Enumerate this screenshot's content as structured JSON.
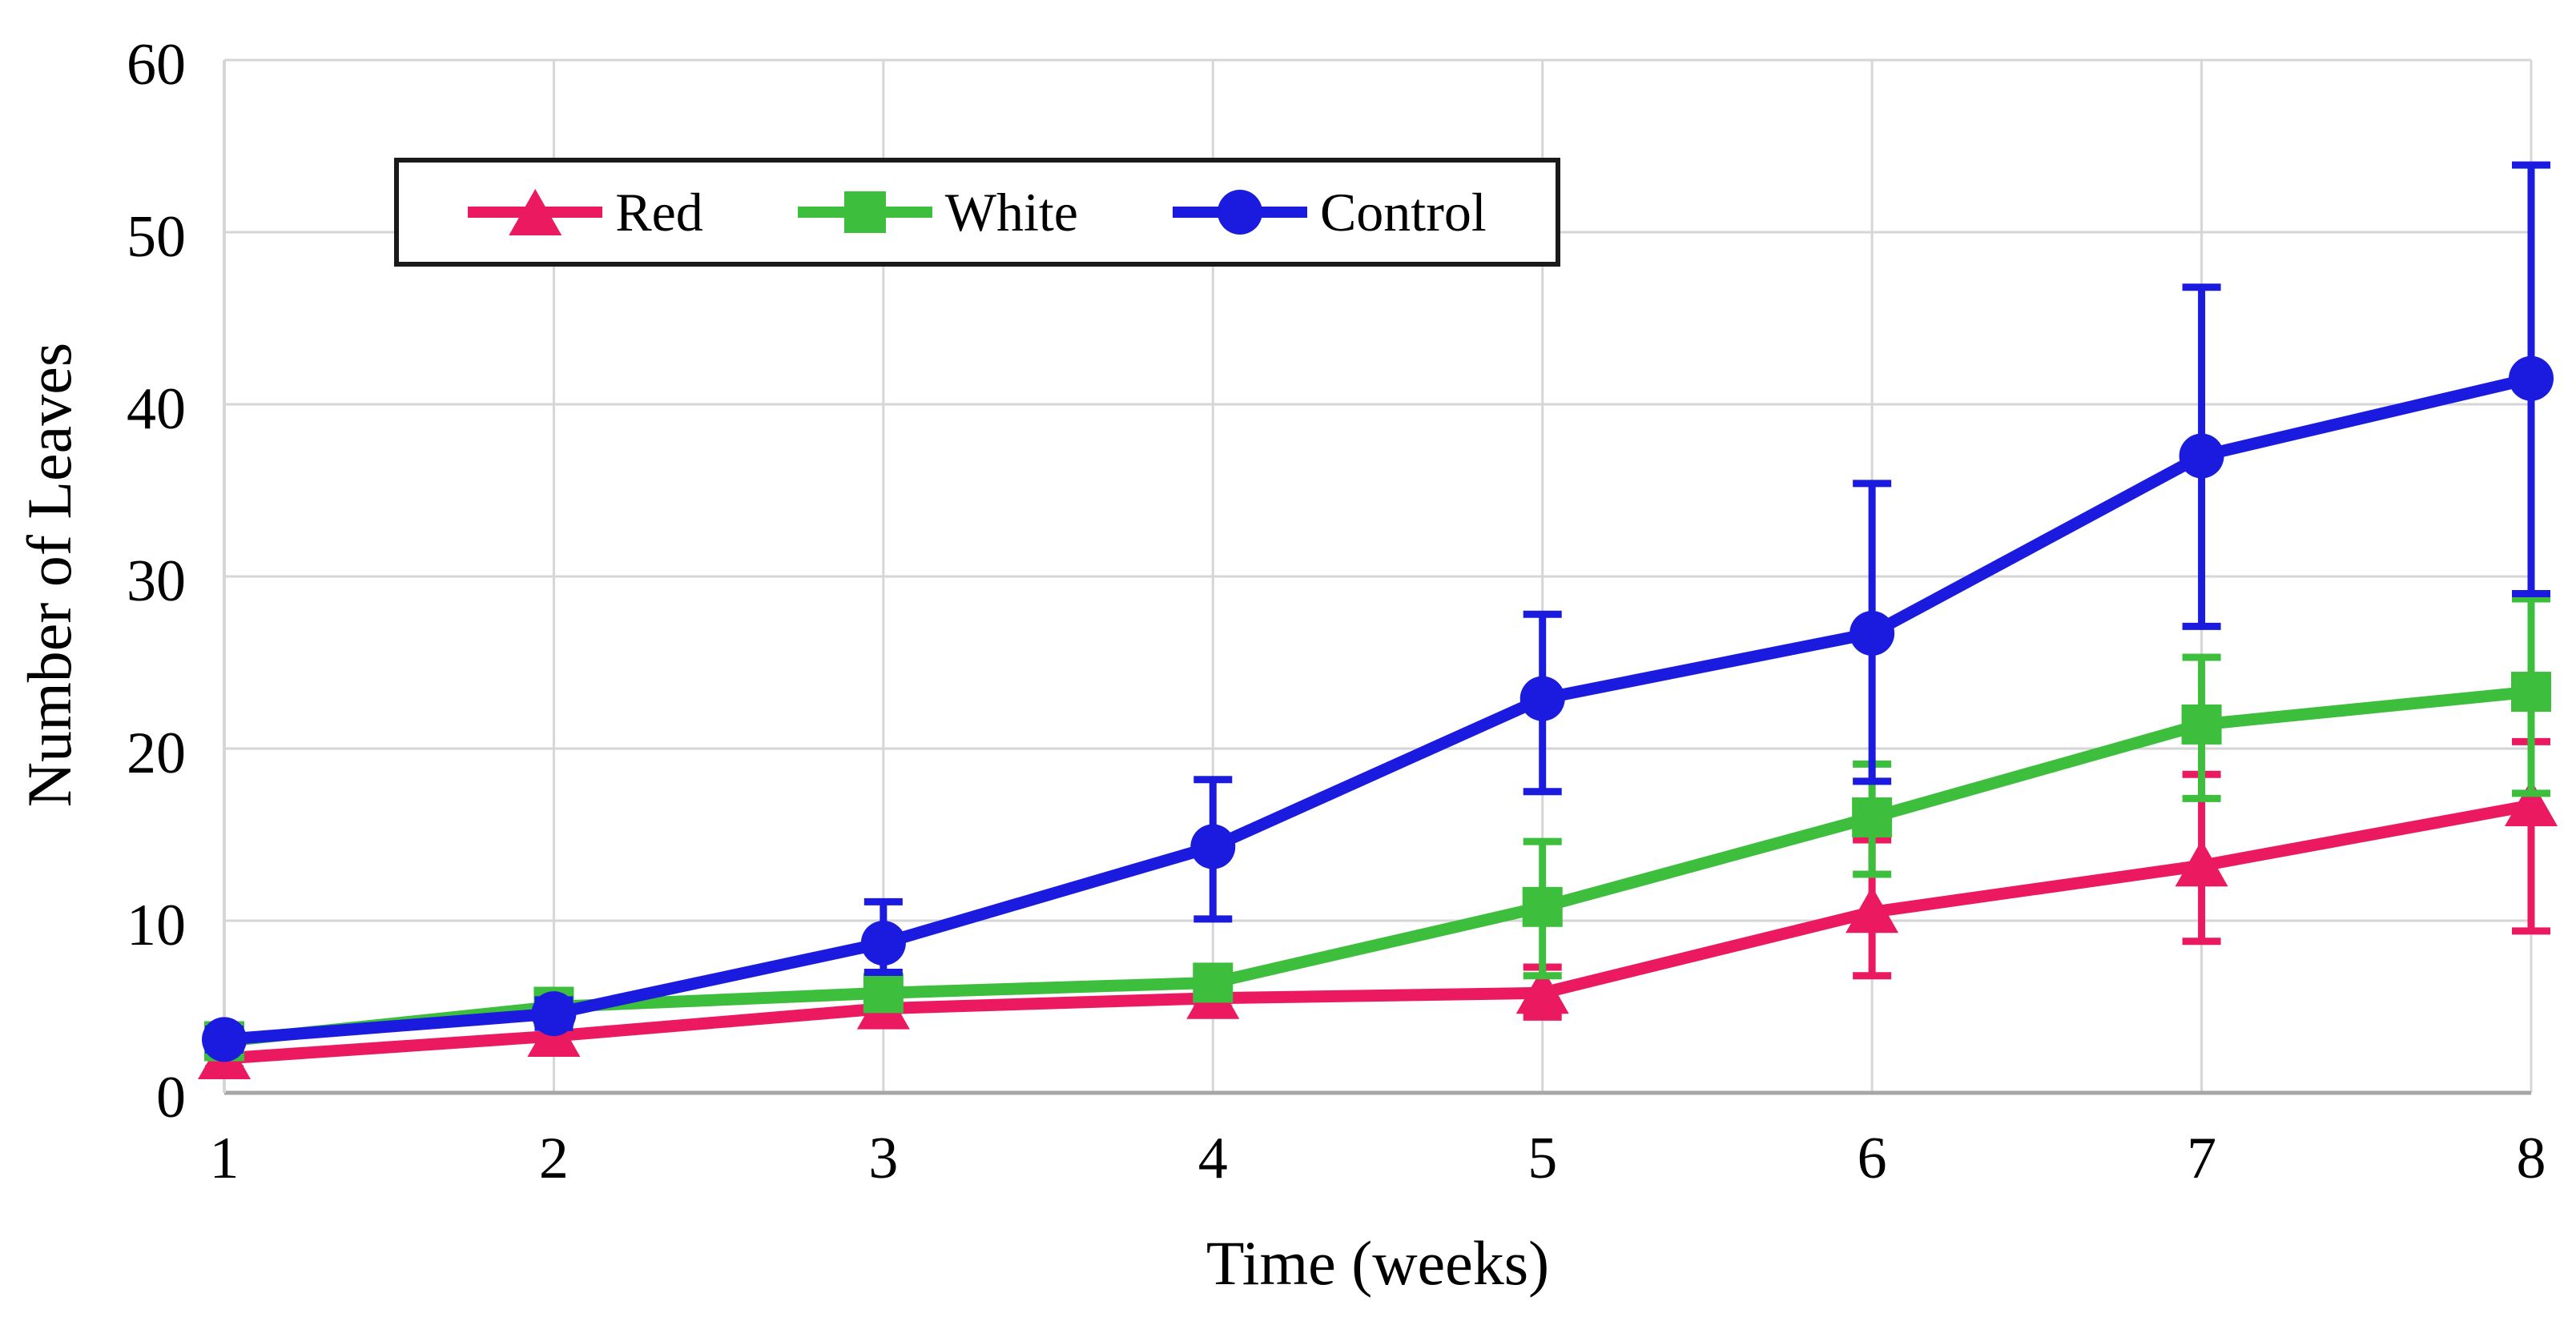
{
  "figure": {
    "background": "#ffffff",
    "text_color": "#000000"
  },
  "chart_data": {
    "type": "line",
    "title": "",
    "xlabel": "Time (weeks)",
    "ylabel": "Number of Leaves",
    "x": [
      1,
      2,
      3,
      4,
      5,
      6,
      7,
      8
    ],
    "xlim": [
      1,
      8
    ],
    "ylim": [
      0,
      60
    ],
    "ytick_step": 10,
    "yticks": [
      0,
      10,
      20,
      30,
      40,
      50,
      60
    ],
    "grid": true,
    "error_bars": true,
    "legend_position": "top-left-inside",
    "grid_color": "#D6D6D6",
    "axis_color": "#A6A6A6",
    "series": [
      {
        "name": "Red",
        "color": "#EB1A60",
        "marker": "triangle",
        "values": [
          2.0,
          3.3,
          4.9,
          5.5,
          5.8,
          10.5,
          13.2,
          16.7
        ],
        "err_up": [
          0.6,
          0.8,
          0.7,
          0.6,
          1.5,
          4.2,
          5.3,
          3.7
        ],
        "err_down": [
          0.6,
          0.8,
          0.7,
          0.6,
          1.4,
          3.7,
          4.4,
          7.3
        ]
      },
      {
        "name": "White",
        "color": "#3DBE3D",
        "marker": "square",
        "values": [
          3.0,
          5.0,
          5.8,
          6.4,
          10.8,
          16.0,
          21.4,
          23.3
        ],
        "err_up": [
          0.5,
          0.7,
          0.7,
          0.7,
          3.8,
          3.1,
          3.9,
          5.4
        ],
        "err_down": [
          0.5,
          0.7,
          0.7,
          0.7,
          4.0,
          3.3,
          4.3,
          5.9
        ]
      },
      {
        "name": "Control",
        "color": "#1B1BE0",
        "marker": "circle",
        "values": [
          3.1,
          4.6,
          8.7,
          14.3,
          22.9,
          26.7,
          37.0,
          41.5
        ],
        "err_up": [
          0.6,
          0.8,
          2.4,
          3.9,
          4.9,
          8.7,
          9.8,
          12.4
        ],
        "err_down": [
          0.6,
          0.8,
          1.7,
          4.2,
          5.4,
          8.6,
          9.9,
          12.5
        ]
      }
    ]
  }
}
